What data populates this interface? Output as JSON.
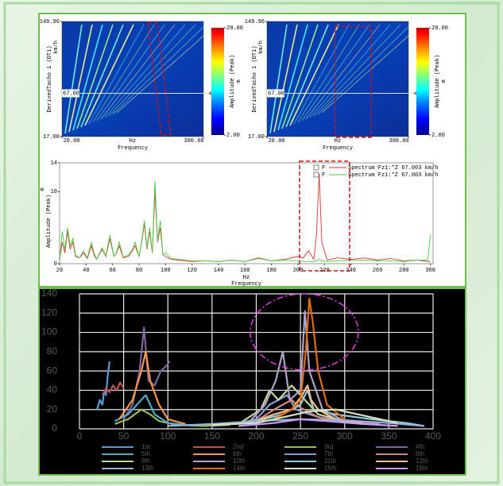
{
  "chart_data": [
    {
      "type": "spectrogram",
      "y_label": "DerivedTacho 1 (DT1)",
      "y_unit": "km/h",
      "x_unit": "Hz",
      "x_label": "Frequency",
      "xlim": [
        20,
        300
      ],
      "xticks": [
        {
          "value": 20,
          "label": "20.00"
        },
        {
          "value": 300,
          "label": "300.00"
        }
      ],
      "ylim": [
        17,
        149.96
      ],
      "yticks": [
        {
          "value": 17,
          "label": "17.00"
        },
        {
          "value": 149.96,
          "label": "149.96"
        }
      ],
      "cursor": {
        "value": 67,
        "label": "67.00"
      },
      "colorbar": {
        "lim": [
          2,
          20
        ],
        "ticks": [
          {
            "value": 2,
            "label": "2.00"
          },
          {
            "value": 20,
            "label": "20.00"
          }
        ],
        "label": "Amplitude (Peak)",
        "unit": "m"
      }
    },
    {
      "type": "spectrogram",
      "y_label": "DerivedTacho 1 (DT1)",
      "y_unit": "km/h",
      "x_unit": "Hz",
      "x_label": "Frequency",
      "xlim": [
        20,
        300
      ],
      "xticks": [
        {
          "value": 20,
          "label": "20.00"
        },
        {
          "value": 300,
          "label": "300.00"
        }
      ],
      "ylim": [
        17,
        149.96
      ],
      "yticks": [
        {
          "value": 17,
          "label": "17.00"
        },
        {
          "value": 149.96,
          "label": "149.96"
        }
      ],
      "cursor": {
        "value": 67,
        "label": "67.00"
      },
      "colorbar": {
        "lim": [
          2,
          20
        ],
        "ticks": [
          {
            "value": 2,
            "label": "2.00"
          },
          {
            "value": 20,
            "label": "20.00"
          }
        ],
        "label": "Amplitude (Peak)",
        "unit": "m"
      }
    },
    {
      "type": "spectrum",
      "x_unit": "Hz",
      "x_label": "Frequency",
      "y_label": "Amplitude (Peak)",
      "y_unit": "m",
      "legend_flag": "F",
      "xlim": [
        20,
        302
      ],
      "xticks": [
        20,
        40,
        60,
        80,
        100,
        120,
        140,
        160,
        180,
        200,
        220,
        240,
        260,
        280,
        300
      ],
      "ylim": [
        0,
        14
      ],
      "yticks": [
        0,
        10,
        14
      ],
      "x": [
        20,
        22,
        24,
        26,
        28,
        30,
        32,
        35,
        38,
        41,
        44,
        46,
        48,
        52,
        55,
        58,
        61,
        63,
        65,
        68,
        72,
        75,
        77,
        80,
        82,
        84,
        86,
        88,
        90,
        92,
        94,
        96,
        98,
        100,
        104,
        110,
        120,
        130,
        140,
        150,
        160,
        170,
        180,
        190,
        200,
        204,
        208,
        212,
        214,
        216,
        218,
        222,
        230,
        240,
        250,
        260,
        270,
        280,
        290,
        298,
        300
      ],
      "series": [
        {
          "name": "Spectrum Fz1:*Z 67.003 km/h",
          "color": "#e03030",
          "values": [
            0.5,
            3,
            1.5,
            4.5,
            2,
            3,
            1,
            0.8,
            1.5,
            0.7,
            2.5,
            1.2,
            0.6,
            2,
            1,
            3.5,
            1,
            1.5,
            2.5,
            0.8,
            1,
            1.8,
            2.5,
            1,
            3,
            5.5,
            2,
            4.5,
            1.5,
            10,
            3,
            5,
            1.2,
            1,
            0.6,
            0.5,
            0.3,
            0.4,
            0.3,
            0.5,
            0.3,
            0.8,
            0.4,
            0.6,
            1,
            0.8,
            1.8,
            0.6,
            4,
            12.5,
            3,
            0.5,
            0.8,
            0.6,
            0.8,
            0.5,
            0.7,
            0.4,
            0.5,
            0.3,
            0.3
          ]
        },
        {
          "name": "Spectrum Fz1:*Z 67.003 km/h",
          "color": "#40d040",
          "values": [
            0.5,
            4.5,
            2,
            5,
            2.5,
            3.5,
            1.2,
            0.8,
            1.8,
            0.8,
            3,
            1.5,
            0.6,
            2.2,
            1.1,
            4,
            1,
            1.6,
            3,
            0.9,
            1.2,
            2,
            3,
            1,
            3.2,
            6,
            2.2,
            5,
            1.6,
            11.5,
            3.2,
            6,
            1.3,
            1.5,
            0.7,
            0.6,
            0.4,
            0.4,
            0.3,
            0.5,
            0.3,
            0.7,
            0.4,
            0.5,
            0.4,
            0.3,
            0.3,
            0.3,
            0.4,
            0.6,
            0.4,
            0.3,
            0.4,
            0.5,
            0.5,
            0.4,
            0.4,
            0.3,
            0.5,
            0.5,
            4
          ]
        }
      ]
    },
    {
      "type": "line",
      "xlim": [
        0,
        400
      ],
      "xticks": [
        0,
        50,
        100,
        150,
        200,
        250,
        300,
        350,
        400
      ],
      "ylim": [
        0,
        140
      ],
      "yticks": [
        0,
        20,
        40,
        60,
        80,
        100,
        120,
        140
      ],
      "grid": true,
      "series": [
        {
          "name": "1st",
          "color": "#5b9bd5",
          "x": [
            20,
            23,
            26,
            28,
            30,
            32,
            34
          ],
          "values": [
            20,
            30,
            25,
            40,
            35,
            55,
            70
          ]
        },
        {
          "name": "2nd",
          "color": "#c0504d",
          "x": [
            26,
            30,
            34,
            38,
            42,
            46,
            50
          ],
          "values": [
            35,
            42,
            38,
            45,
            40,
            48,
            42
          ]
        },
        {
          "name": "3rd",
          "color": "#9bbb59",
          "x": [
            40,
            55,
            70,
            80,
            90,
            110,
            140,
            170
          ],
          "values": [
            5,
            10,
            20,
            15,
            8,
            4,
            3,
            4
          ]
        },
        {
          "name": "4th",
          "color": "#8064a2",
          "x": [
            50,
            60,
            68,
            73,
            78,
            85,
            92,
            98,
            102
          ],
          "values": [
            10,
            25,
            60,
            105,
            50,
            45,
            60,
            65,
            70
          ]
        },
        {
          "name": "5th",
          "color": "#4bacc6",
          "x": [
            40,
            55,
            65,
            75,
            85,
            100,
            130
          ],
          "values": [
            8,
            15,
            25,
            35,
            15,
            6,
            3
          ]
        },
        {
          "name": "6th",
          "color": "#f79646",
          "x": [
            45,
            60,
            70,
            75,
            80,
            90,
            100,
            120
          ],
          "values": [
            10,
            30,
            60,
            80,
            50,
            25,
            10,
            5
          ]
        },
        {
          "name": "7th",
          "color": "#7f9fd5",
          "x": [
            150,
            180,
            200,
            215,
            225,
            235,
            245,
            260,
            280,
            320
          ],
          "values": [
            3,
            6,
            10,
            25,
            30,
            35,
            20,
            15,
            10,
            5
          ]
        },
        {
          "name": "8th",
          "color": "#d48481",
          "x": [
            170,
            200,
            220,
            230,
            240,
            250,
            270,
            300,
            340
          ],
          "values": [
            5,
            8,
            20,
            25,
            30,
            22,
            12,
            8,
            5
          ]
        },
        {
          "name": "9th",
          "color": "#c3d69b",
          "x": [
            180,
            205,
            215,
            225,
            240,
            255,
            270,
            300
          ],
          "values": [
            5,
            20,
            40,
            30,
            45,
            30,
            15,
            8
          ]
        },
        {
          "name": "10th",
          "color": "#b3a2c7",
          "x": [
            190,
            210,
            222,
            230,
            238,
            250,
            255,
            260,
            275,
            300
          ],
          "values": [
            5,
            25,
            50,
            80,
            30,
            40,
            122,
            60,
            20,
            8
          ]
        },
        {
          "name": "11th",
          "color": "#93cddd",
          "x": [
            200,
            230,
            250,
            258,
            265,
            290,
            330,
            370,
            390
          ],
          "values": [
            8,
            15,
            25,
            40,
            20,
            15,
            10,
            6,
            3
          ]
        },
        {
          "name": "12th",
          "color": "#fac090",
          "x": [
            190,
            220,
            240,
            252,
            258,
            262,
            270,
            290,
            320
          ],
          "values": [
            5,
            15,
            20,
            35,
            45,
            30,
            20,
            10,
            6
          ]
        },
        {
          "name": "13th",
          "color": "#95b3d7",
          "x": [
            100,
            150,
            200,
            250,
            300,
            350,
            390
          ],
          "values": [
            3,
            5,
            8,
            10,
            9,
            6,
            3
          ]
        },
        {
          "name": "14th",
          "color": "#e46c0a",
          "x": [
            220,
            240,
            250,
            256,
            260,
            264,
            270,
            280,
            300
          ],
          "values": [
            10,
            20,
            30,
            80,
            135,
            110,
            60,
            25,
            10
          ]
        },
        {
          "name": "15th",
          "color": "#d7e4bd",
          "x": [
            150,
            200,
            230,
            260,
            290,
            330,
            360
          ],
          "values": [
            4,
            6,
            12,
            18,
            20,
            12,
            6
          ]
        },
        {
          "name": "16th",
          "color": "#cc99ff",
          "x": [
            180,
            220,
            250,
            280,
            320,
            360
          ],
          "values": [
            3,
            6,
            10,
            8,
            5,
            3
          ]
        }
      ]
    }
  ]
}
